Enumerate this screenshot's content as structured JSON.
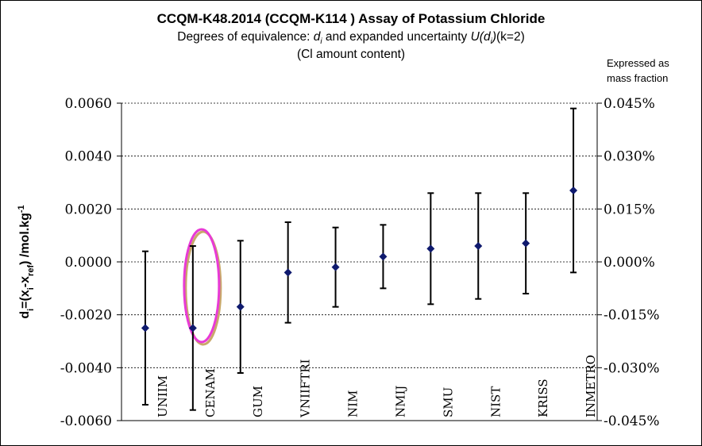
{
  "title": {
    "line1": "CCQM-K48.2014 (CCQM-K114 ) Assay of Potassium Chloride",
    "line2_prefix": "Degrees of equivalence: ",
    "line2_di": "d",
    "line2_di_sub": "i",
    "line2_mid": " and expanded uncertainty ",
    "line2_U": "U(d",
    "line2_U_sub": "i",
    "line2_U_close": ")",
    "line2_suffix": "(k=2)",
    "line3": "(Cl amount content)"
  },
  "right_axis_note": {
    "line1": "Expressed as",
    "line2": "mass fraction"
  },
  "colors": {
    "marker": "#0f1a6e",
    "errorbar": "#000000",
    "highlight": "#e83ad6",
    "highlight_shadow": "#c9a86a",
    "grid": "#000000"
  },
  "chart_data": {
    "type": "scatter",
    "series_name": "d_i with U(d_i) (k=2)",
    "categories": [
      "UNIIM",
      "CENAM",
      "GUM",
      "VNIIFTRI",
      "NIM",
      "NMIJ",
      "SMU",
      "NIST",
      "KRISS",
      "INMETRO"
    ],
    "values": [
      -0.0025,
      -0.0025,
      -0.0017,
      -0.0004,
      -0.0002,
      0.0002,
      0.0005,
      0.0006,
      0.0007,
      0.0027
    ],
    "uncertainty": [
      0.0029,
      0.0031,
      0.0025,
      0.0019,
      0.0015,
      0.0012,
      0.0021,
      0.002,
      0.0019,
      0.0031
    ],
    "highlighted": "CENAM",
    "ylim": [
      -0.006,
      0.006
    ],
    "y_ticks": [
      0.006,
      0.004,
      0.002,
      0.0,
      -0.002,
      -0.004,
      -0.006
    ],
    "y_tick_labels": [
      "0.0060",
      "0.0040",
      "0.0020",
      "0.0000",
      "-0.0020",
      "-0.0040",
      "-0.0060"
    ],
    "y2_ticks": [
      0.045,
      0.03,
      0.015,
      0.0,
      -0.015,
      -0.03,
      -0.045
    ],
    "y2_tick_labels": [
      "0.045%",
      "0.030%",
      "0.015%",
      "0.000%",
      "-0.015%",
      "-0.030%",
      "-0.045%"
    ],
    "ylabel_parts": [
      "d",
      "i",
      "=(x",
      "i",
      "-x",
      "ref",
      ") /mol.kg",
      "-1"
    ],
    "xlabel": "",
    "gridlines": "dashed-horizontal"
  }
}
